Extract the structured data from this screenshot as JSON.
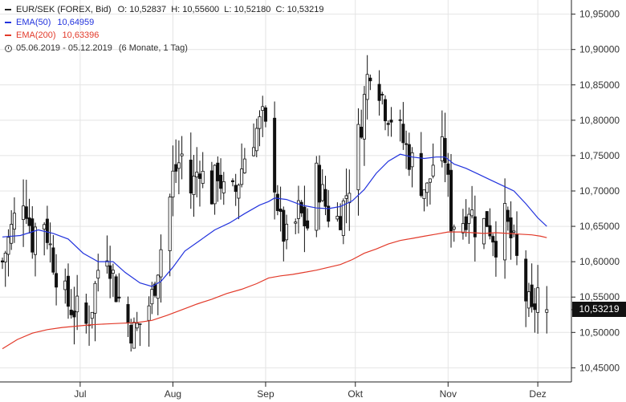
{
  "legend": {
    "main": "EUR/SEK (FOREX, Bid)",
    "ohlc": "O: 10,52837  H: 10,55600  L: 10,52180  C: 10,53219",
    "ema50_label": "EMA(50)",
    "ema50_value": "10,64959",
    "ema200_label": "EMA(200)",
    "ema200_value": "10,63396",
    "period": "05.06.2019 - 05.12.2019",
    "period_note": "(6 Monate, 1 Tag)"
  },
  "last_price": "10,53219",
  "colors": {
    "ema50": "#2233dd",
    "ema200": "#e23a2a",
    "candle": "#111111",
    "grid": "#e4e4e4",
    "axis": "#222222"
  },
  "chart_data": {
    "type": "candlestick",
    "x_range": [
      "05.06.2019",
      "05.12.2019"
    ],
    "y_range": [
      10.43,
      10.97
    ],
    "y_ticks": [
      {
        "value": 10.45,
        "label": "10,45000"
      },
      {
        "value": 10.5,
        "label": "10,50000"
      },
      {
        "value": 10.55,
        "label": "10,55000"
      },
      {
        "value": 10.6,
        "label": "10,60000"
      },
      {
        "value": 10.65,
        "label": "10,65000"
      },
      {
        "value": 10.7,
        "label": "10,70000"
      },
      {
        "value": 10.75,
        "label": "10,75000"
      },
      {
        "value": 10.8,
        "label": "10,80000"
      },
      {
        "value": 10.85,
        "label": "10,85000"
      },
      {
        "value": 10.9,
        "label": "10,90000"
      },
      {
        "value": 10.95,
        "label": "10,95000"
      }
    ],
    "x_ticks": [
      {
        "day": 26,
        "label": "Jul"
      },
      {
        "day": 57,
        "label": "Aug"
      },
      {
        "day": 88,
        "label": "Sep"
      },
      {
        "day": 118,
        "label": "Okt"
      },
      {
        "day": 149,
        "label": "Nov"
      },
      {
        "day": 179,
        "label": "Dez"
      }
    ],
    "close_path": [
      [
        0,
        10.6
      ],
      [
        4,
        10.66
      ],
      [
        6,
        10.71
      ],
      [
        8,
        10.68
      ],
      [
        10,
        10.63
      ],
      [
        13,
        10.68
      ],
      [
        16,
        10.62
      ],
      [
        19,
        10.57
      ],
      [
        22,
        10.54
      ],
      [
        25,
        10.53
      ],
      [
        28,
        10.51
      ],
      [
        30,
        10.54
      ],
      [
        32,
        10.59
      ],
      [
        35,
        10.62
      ],
      [
        38,
        10.56
      ],
      [
        41,
        10.52
      ],
      [
        44,
        10.5
      ],
      [
        47,
        10.52
      ],
      [
        50,
        10.55
      ],
      [
        53,
        10.62
      ],
      [
        55,
        10.66
      ],
      [
        57,
        10.72
      ],
      [
        60,
        10.75
      ],
      [
        63,
        10.7
      ],
      [
        66,
        10.74
      ],
      [
        69,
        10.68
      ],
      [
        72,
        10.73
      ],
      [
        75,
        10.68
      ],
      [
        78,
        10.7
      ],
      [
        81,
        10.75
      ],
      [
        84,
        10.78
      ],
      [
        87,
        10.8
      ],
      [
        90,
        10.75
      ],
      [
        93,
        10.65
      ],
      [
        96,
        10.62
      ],
      [
        99,
        10.67
      ],
      [
        102,
        10.65
      ],
      [
        105,
        10.72
      ],
      [
        108,
        10.68
      ],
      [
        111,
        10.65
      ],
      [
        114,
        10.68
      ],
      [
        117,
        10.73
      ],
      [
        120,
        10.8
      ],
      [
        122,
        10.86
      ],
      [
        124,
        10.9
      ],
      [
        126,
        10.85
      ],
      [
        128,
        10.82
      ],
      [
        131,
        10.8
      ],
      [
        133,
        10.78
      ],
      [
        136,
        10.75
      ],
      [
        139,
        10.72
      ],
      [
        142,
        10.7
      ],
      [
        145,
        10.76
      ],
      [
        148,
        10.75
      ],
      [
        150,
        10.66
      ],
      [
        153,
        10.65
      ],
      [
        156,
        10.68
      ],
      [
        159,
        10.64
      ],
      [
        162,
        10.66
      ],
      [
        165,
        10.63
      ],
      [
        168,
        10.66
      ],
      [
        171,
        10.62
      ],
      [
        173,
        10.58
      ],
      [
        175,
        10.55
      ],
      [
        177,
        10.52
      ],
      [
        179,
        10.56
      ],
      [
        181,
        10.53
      ],
      [
        182,
        10.53
      ]
    ],
    "ema50": [
      [
        0,
        10.635
      ],
      [
        6,
        10.637
      ],
      [
        12,
        10.645
      ],
      [
        17,
        10.64
      ],
      [
        22,
        10.632
      ],
      [
        27,
        10.612
      ],
      [
        32,
        10.6
      ],
      [
        37,
        10.6
      ],
      [
        41,
        10.585
      ],
      [
        46,
        10.57
      ],
      [
        50,
        10.565
      ],
      [
        53,
        10.572
      ],
      [
        57,
        10.592
      ],
      [
        61,
        10.615
      ],
      [
        66,
        10.63
      ],
      [
        71,
        10.645
      ],
      [
        76,
        10.655
      ],
      [
        81,
        10.668
      ],
      [
        86,
        10.68
      ],
      [
        89,
        10.685
      ],
      [
        91,
        10.69
      ],
      [
        95,
        10.688
      ],
      [
        100,
        10.68
      ],
      [
        105,
        10.676
      ],
      [
        109,
        10.675
      ],
      [
        113,
        10.678
      ],
      [
        117,
        10.686
      ],
      [
        121,
        10.702
      ],
      [
        125,
        10.725
      ],
      [
        129,
        10.742
      ],
      [
        133,
        10.752
      ],
      [
        137,
        10.748
      ],
      [
        141,
        10.746
      ],
      [
        145,
        10.748
      ],
      [
        148,
        10.748
      ],
      [
        151,
        10.738
      ],
      [
        155,
        10.732
      ],
      [
        159,
        10.724
      ],
      [
        163,
        10.716
      ],
      [
        167,
        10.708
      ],
      [
        171,
        10.7
      ],
      [
        175,
        10.682
      ],
      [
        179,
        10.662
      ],
      [
        182,
        10.65
      ]
    ],
    "ema200": [
      [
        0,
        10.477
      ],
      [
        5,
        10.49
      ],
      [
        10,
        10.499
      ],
      [
        15,
        10.504
      ],
      [
        20,
        10.507
      ],
      [
        25,
        10.509
      ],
      [
        30,
        10.511
      ],
      [
        35,
        10.512
      ],
      [
        40,
        10.513
      ],
      [
        45,
        10.514
      ],
      [
        50,
        10.517
      ],
      [
        55,
        10.524
      ],
      [
        60,
        10.532
      ],
      [
        65,
        10.54
      ],
      [
        70,
        10.547
      ],
      [
        75,
        10.555
      ],
      [
        80,
        10.561
      ],
      [
        85,
        10.569
      ],
      [
        89,
        10.577
      ],
      [
        93,
        10.58
      ],
      [
        97,
        10.582
      ],
      [
        101,
        10.585
      ],
      [
        105,
        10.588
      ],
      [
        109,
        10.592
      ],
      [
        113,
        10.596
      ],
      [
        117,
        10.603
      ],
      [
        121,
        10.612
      ],
      [
        125,
        10.618
      ],
      [
        129,
        10.625
      ],
      [
        133,
        10.63
      ],
      [
        137,
        10.633
      ],
      [
        141,
        10.636
      ],
      [
        145,
        10.639
      ],
      [
        149,
        10.642
      ],
      [
        153,
        10.642
      ],
      [
        157,
        10.641
      ],
      [
        161,
        10.64
      ],
      [
        165,
        10.641
      ],
      [
        169,
        10.64
      ],
      [
        173,
        10.639
      ],
      [
        177,
        10.638
      ],
      [
        180,
        10.636
      ],
      [
        182,
        10.634
      ]
    ]
  }
}
